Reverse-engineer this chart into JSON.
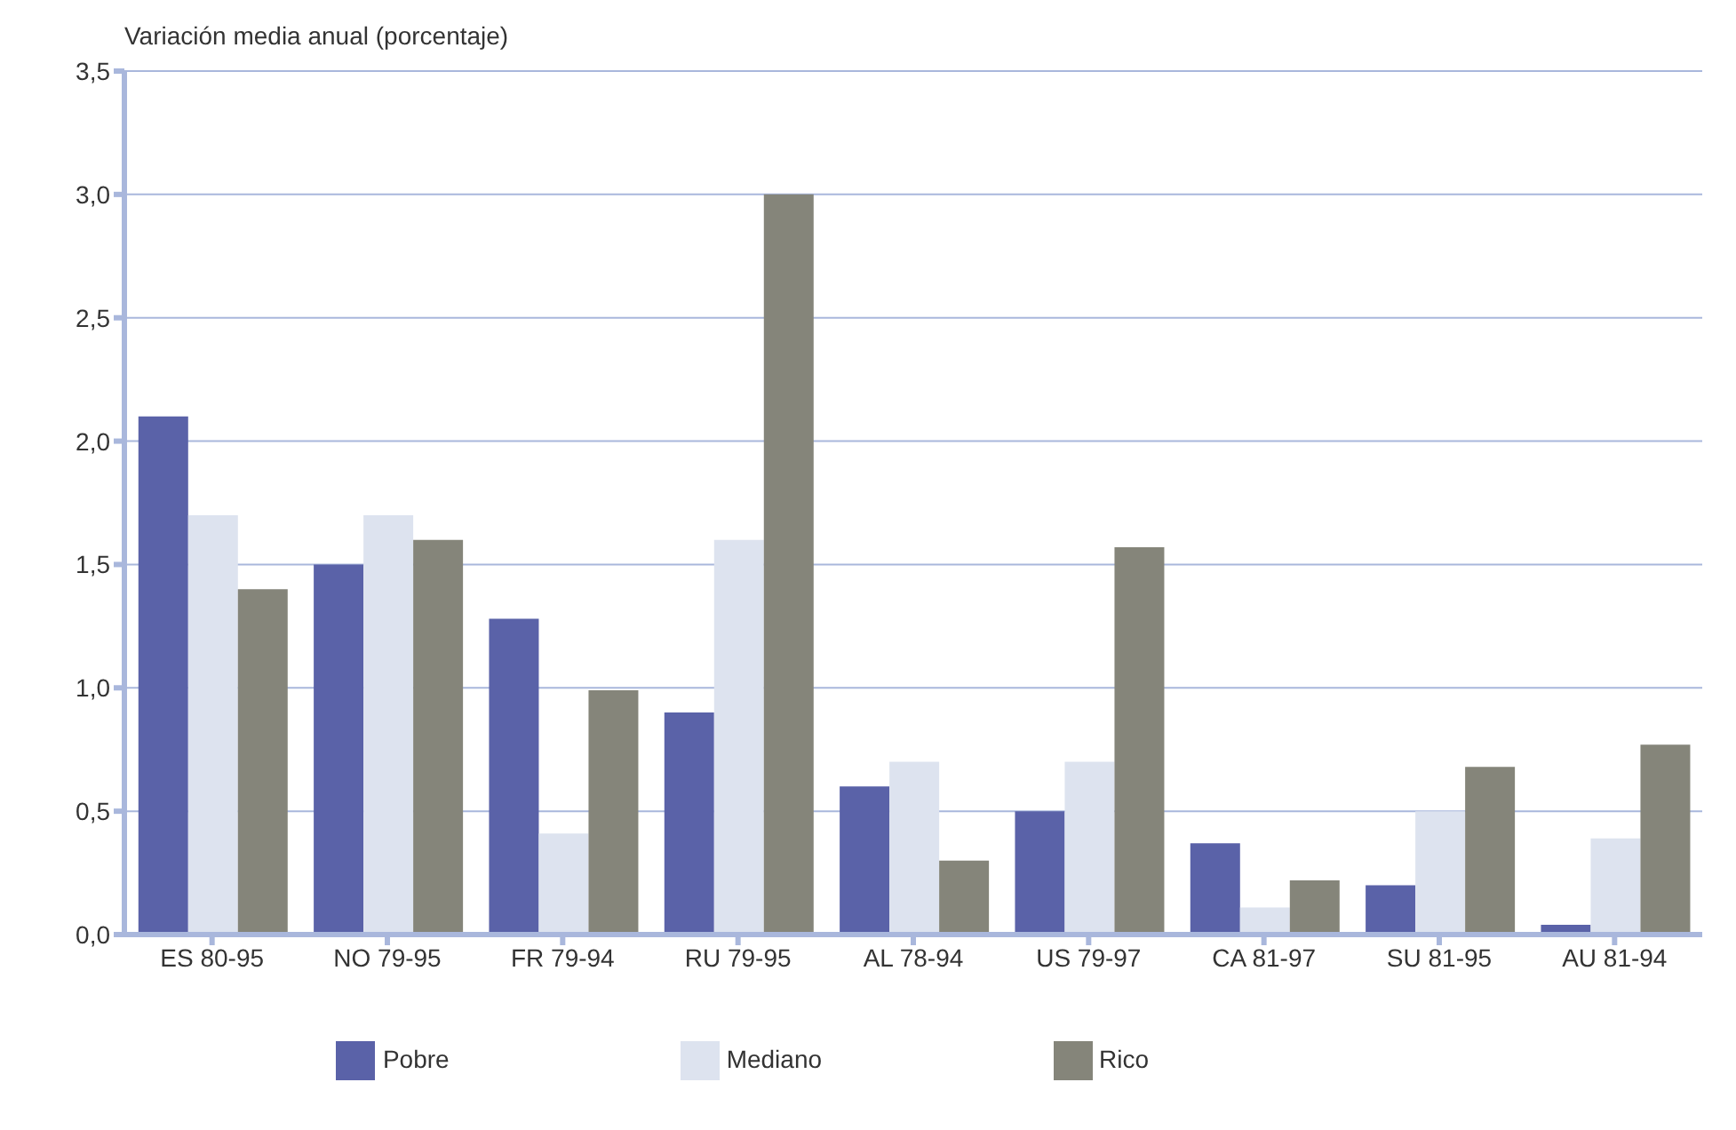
{
  "chart_data": {
    "type": "bar",
    "ylabel": "Variación media anual (porcentaje)",
    "categories": [
      "ES 80-95",
      "NO 79-95",
      "FR 79-94",
      "RU 79-95",
      "AL 78-94",
      "US 79-97",
      "CA 81-97",
      "SU 81-95",
      "AU 81-94"
    ],
    "series": [
      {
        "name": "Pobre",
        "color": "#5a62a8",
        "values": [
          2.1,
          1.5,
          1.28,
          0.9,
          0.6,
          0.5,
          0.37,
          0.2,
          0.04
        ]
      },
      {
        "name": "Mediano",
        "color": "#dde3ef",
        "values": [
          1.7,
          1.7,
          0.41,
          1.6,
          0.7,
          0.7,
          0.11,
          0.5,
          0.39
        ]
      },
      {
        "name": "Rico",
        "color": "#85857a",
        "values": [
          1.4,
          1.6,
          0.99,
          3.0,
          0.3,
          1.57,
          0.22,
          0.68,
          0.77
        ]
      }
    ],
    "ylim": [
      0,
      3.5
    ],
    "yticks": [
      {
        "value": 0,
        "label": "0,0"
      },
      {
        "value": 0.5,
        "label": "0,5"
      },
      {
        "value": 1,
        "label": "1,0"
      },
      {
        "value": 1.5,
        "label": "1,5"
      },
      {
        "value": 2,
        "label": "2,0"
      },
      {
        "value": 2.5,
        "label": "2,5"
      },
      {
        "value": 3,
        "label": "3,0"
      },
      {
        "value": 3.5,
        "label": "3,5"
      }
    ],
    "grid": "y",
    "legend": "bottom"
  }
}
